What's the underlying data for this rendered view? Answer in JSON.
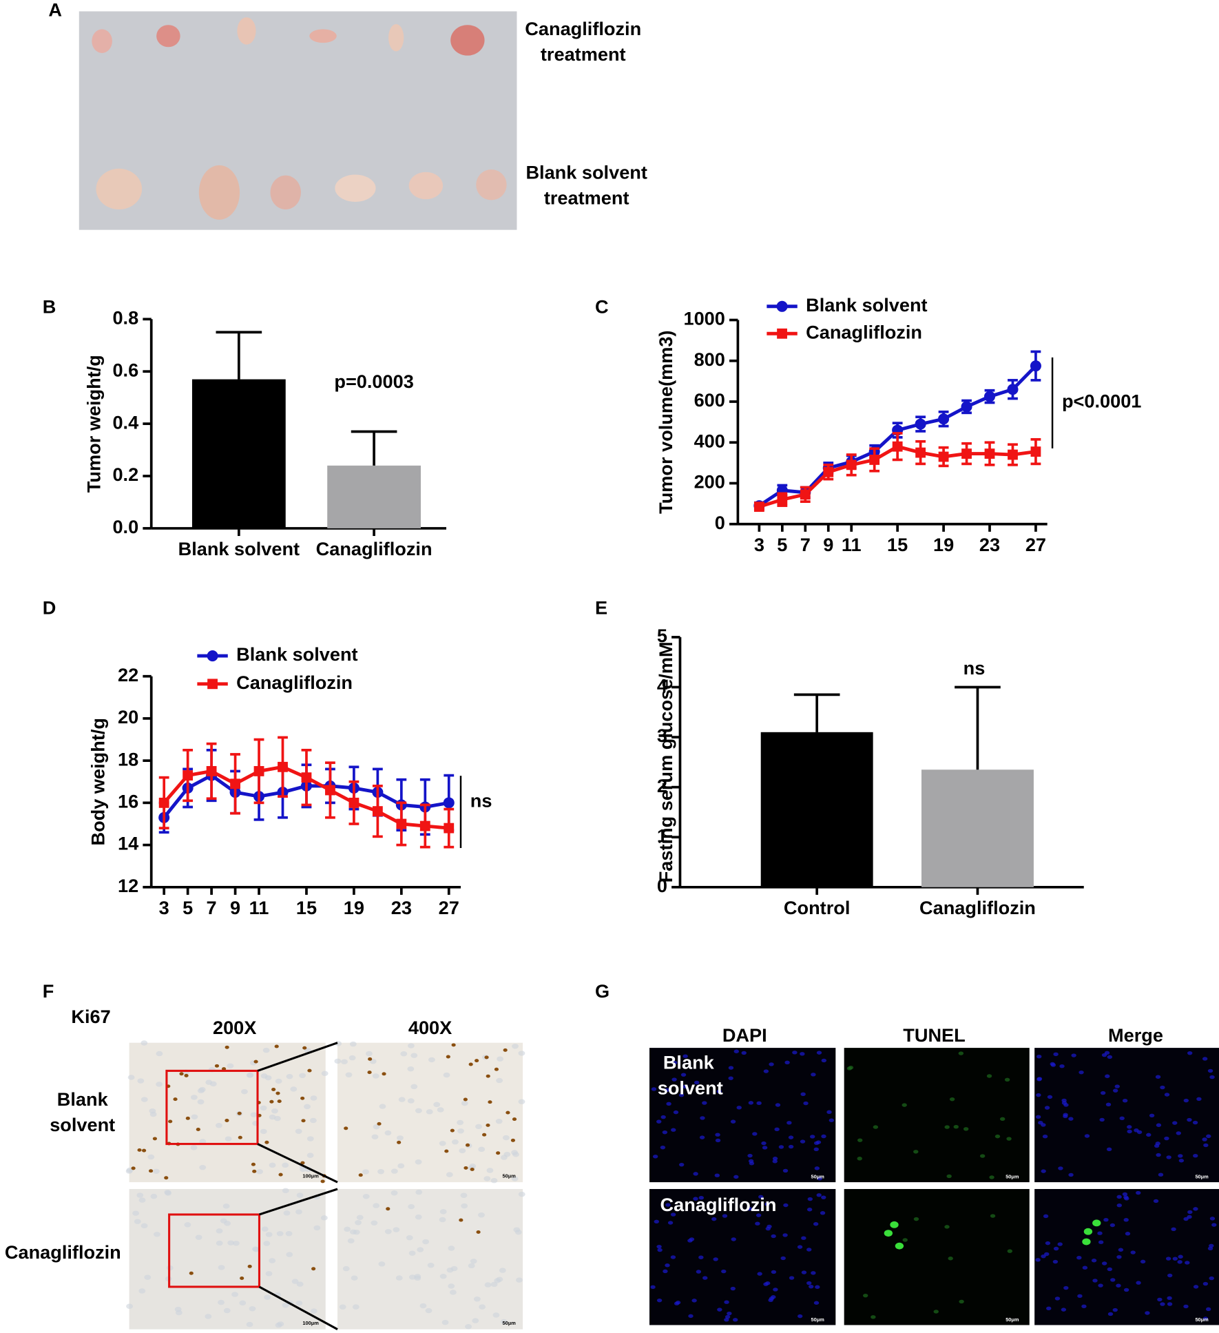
{
  "panel_labels": [
    "A",
    "B",
    "C",
    "D",
    "E",
    "F",
    "G"
  ],
  "panel_a": {
    "labels": [
      [
        "Canagliflozin",
        "treatment"
      ],
      [
        "Blank solvent",
        "treatment"
      ]
    ]
  },
  "chart_data": [
    {
      "type": "bar",
      "ylabel": "Tumor weight/g",
      "categories": [
        "Blank solvent",
        "Canagliflozin"
      ],
      "values": [
        0.57,
        0.24
      ],
      "errors": [
        0.18,
        0.13
      ],
      "colors": [
        "#000000",
        "#a6a6a8"
      ],
      "ylim": [
        0,
        0.8
      ],
      "yticks": [
        {
          "value": 0,
          "label": "0.0"
        },
        0.2,
        0.4,
        0.6,
        0.8
      ],
      "annotations": [
        "p=0.0003"
      ]
    },
    {
      "type": "line",
      "ylabel": "Tumor volume(mm3)",
      "x": [
        3,
        5,
        7,
        9,
        11,
        13,
        15,
        17,
        19,
        21,
        23,
        25,
        27
      ],
      "xlim": [
        1,
        28
      ],
      "xticks": [
        3,
        5,
        7,
        9,
        11,
        15,
        19,
        23,
        27
      ],
      "ylim": [
        0,
        1000
      ],
      "yticks": [
        0,
        200,
        400,
        600,
        800,
        1000
      ],
      "series": [
        {
          "name": "Blank solvent",
          "color": "#1414c8",
          "marker": "circle",
          "values": [
            90,
            165,
            155,
            275,
            305,
            355,
            460,
            490,
            515,
            575,
            625,
            660,
            775
          ],
          "errors": [
            15,
            25,
            25,
            25,
            30,
            30,
            35,
            35,
            35,
            30,
            30,
            45,
            70
          ]
        },
        {
          "name": "Canagliflozin",
          "color": "#f01414",
          "marker": "square",
          "values": [
            85,
            120,
            145,
            255,
            290,
            315,
            380,
            350,
            330,
            345,
            345,
            340,
            355
          ],
          "errors": [
            15,
            30,
            35,
            35,
            50,
            55,
            65,
            55,
            45,
            50,
            55,
            50,
            60
          ]
        }
      ],
      "annotations": [
        "p<0.0001"
      ]
    },
    {
      "type": "line",
      "ylabel": "Body weight/g",
      "x": [
        3,
        5,
        7,
        9,
        11,
        13,
        15,
        17,
        19,
        21,
        23,
        25,
        27
      ],
      "xlim": [
        2,
        28
      ],
      "xticks": [
        3,
        5,
        7,
        9,
        11,
        15,
        19,
        23,
        27
      ],
      "ylim": [
        12,
        22
      ],
      "yticks": [
        12,
        14,
        16,
        18,
        20,
        22
      ],
      "series": [
        {
          "name": "Blank solvent",
          "color": "#1414c8",
          "marker": "circle",
          "values": [
            15.3,
            16.7,
            17.3,
            16.5,
            16.3,
            16.5,
            16.8,
            16.8,
            16.7,
            16.5,
            15.9,
            15.8,
            16.0
          ],
          "errors": [
            0.7,
            0.9,
            1.2,
            1.0,
            1.1,
            1.2,
            1.0,
            0.8,
            1.0,
            1.1,
            1.2,
            1.3,
            1.3
          ]
        },
        {
          "name": "Canagliflozin",
          "color": "#f01414",
          "marker": "square",
          "values": [
            16.0,
            17.3,
            17.5,
            16.9,
            17.5,
            17.7,
            17.2,
            16.6,
            16.0,
            15.6,
            15.0,
            14.9,
            14.8
          ],
          "errors": [
            1.2,
            1.2,
            1.3,
            1.4,
            1.5,
            1.4,
            1.3,
            1.3,
            1.0,
            1.2,
            1.0,
            1.0,
            0.9
          ]
        }
      ],
      "annotations": [
        "ns"
      ]
    },
    {
      "type": "bar",
      "ylabel": "Fasting serum glucose/mM",
      "categories": [
        "Control",
        "Canagliflozin"
      ],
      "values": [
        3.1,
        2.35
      ],
      "errors": [
        0.75,
        1.65
      ],
      "colors": [
        "#000000",
        "#a6a6a8"
      ],
      "ylim": [
        0,
        5
      ],
      "yticks": [
        0,
        1,
        2,
        3,
        4,
        5
      ],
      "annotations": [
        "ns"
      ]
    }
  ],
  "panel_f": {
    "stain": "Ki67",
    "columns": [
      "200X",
      "400X"
    ],
    "rows": [
      [
        "Blank",
        "solvent"
      ],
      [
        "Canagliflozin"
      ]
    ],
    "scale_bars": [
      "100μm",
      "50μm"
    ]
  },
  "panel_g": {
    "columns": [
      "DAPI",
      "TUNEL",
      "Merge"
    ],
    "rows": [
      [
        "Blank",
        "solvent"
      ],
      [
        "Canagliflozin"
      ]
    ],
    "scale_bar": "50μm"
  }
}
